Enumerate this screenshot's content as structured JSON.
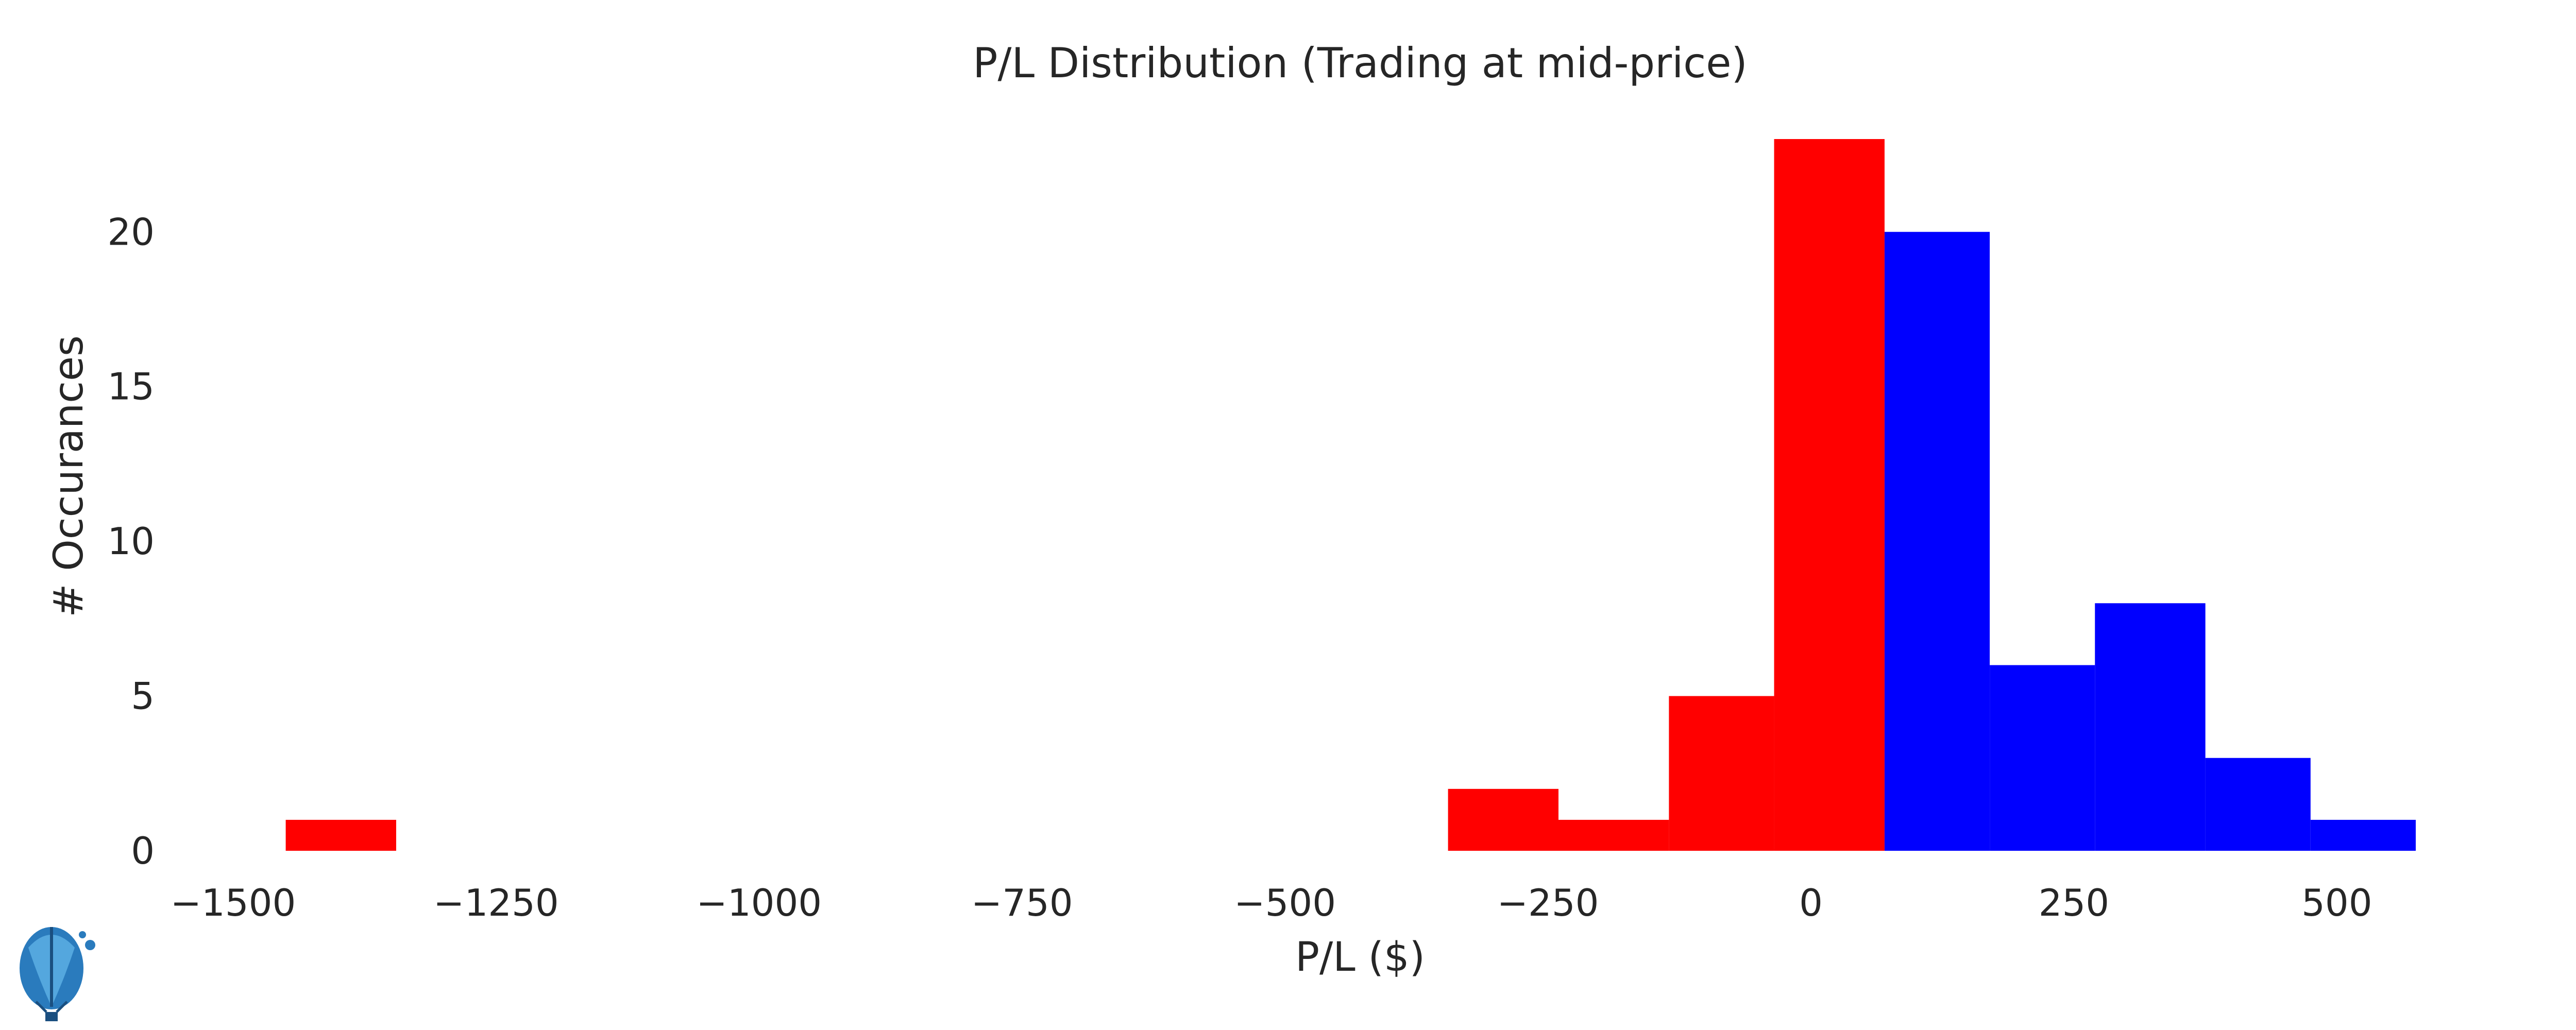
{
  "chart_data": {
    "type": "bar",
    "title": "P/L Distribution (Trading at mid-price)",
    "xlabel": "P/L ($)",
    "ylabel": "# Occurances",
    "xlim": [
      -1560,
      600
    ],
    "ylim": [
      0,
      23
    ],
    "grid": false,
    "legend": "none",
    "xticks": [
      -1500,
      -1250,
      -1000,
      -750,
      -500,
      -250,
      0,
      250,
      500
    ],
    "xtick_labels": [
      "−1500",
      "−1250",
      "−1000",
      "−750",
      "−500",
      "−250",
      "0",
      "250",
      "500"
    ],
    "yticks": [
      0,
      5,
      10,
      15,
      20
    ],
    "ytick_labels": [
      "0",
      "5",
      "10",
      "15",
      "20"
    ],
    "bins": [
      {
        "x0": -1450,
        "x1": -1345,
        "count": 1,
        "color": "#ff0000"
      },
      {
        "x0": -345,
        "x1": -240,
        "count": 2,
        "color": "#ff0000"
      },
      {
        "x0": -240,
        "x1": -135,
        "count": 1,
        "color": "#ff0000"
      },
      {
        "x0": -135,
        "x1": -35,
        "count": 5,
        "color": "#ff0000"
      },
      {
        "x0": -35,
        "x1": 70,
        "count": 23,
        "color": "#ff0000"
      },
      {
        "x0": 70,
        "x1": 170,
        "count": 20,
        "color": "#0000ff"
      },
      {
        "x0": 170,
        "x1": 270,
        "count": 6,
        "color": "#0000ff"
      },
      {
        "x0": 270,
        "x1": 375,
        "count": 8,
        "color": "#0000ff"
      },
      {
        "x0": 375,
        "x1": 475,
        "count": 3,
        "color": "#0000ff"
      },
      {
        "x0": 475,
        "x1": 575,
        "count": 1,
        "color": "#0000ff"
      }
    ]
  },
  "logo": {
    "icon": "hot-air-balloon-icon"
  }
}
